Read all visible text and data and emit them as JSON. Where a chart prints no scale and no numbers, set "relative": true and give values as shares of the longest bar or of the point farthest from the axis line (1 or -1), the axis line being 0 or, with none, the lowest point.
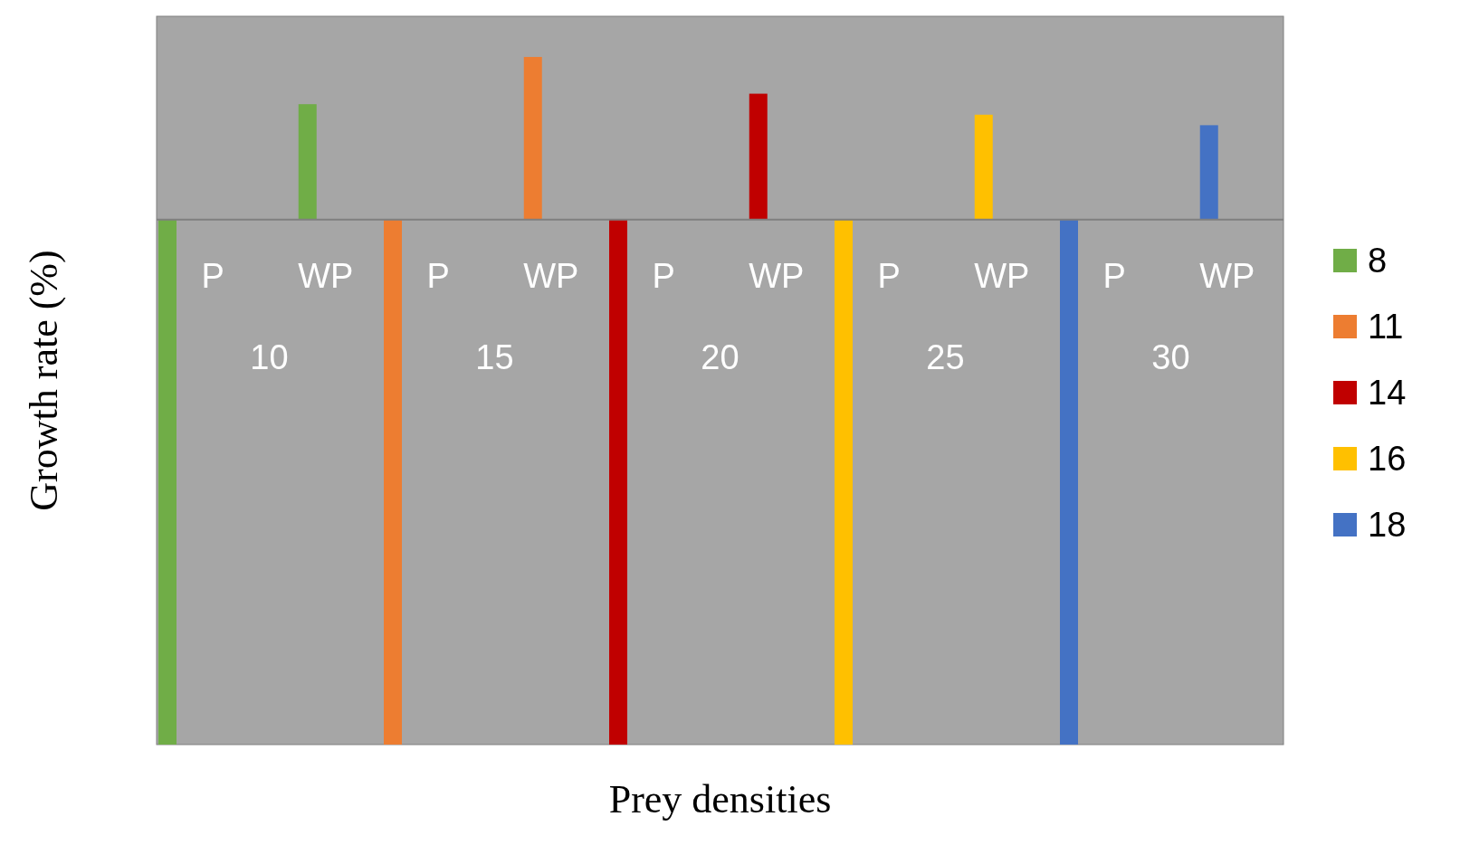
{
  "chart_data": {
    "type": "bar",
    "relative": true,
    "xlabel": "Prey densities",
    "ylabel": "Growth rate (%)",
    "categories": [
      "P",
      "WP",
      "P",
      "WP",
      "P",
      "WP",
      "P",
      "WP",
      "P",
      "WP"
    ],
    "annotations": [
      "10",
      "15",
      "20",
      "25",
      "30"
    ],
    "series": [
      {
        "name": "8",
        "color": "#70ad47",
        "values": [
          -1,
          0.22,
          null,
          null,
          null,
          null,
          null,
          null,
          null,
          null
        ]
      },
      {
        "name": "11",
        "color": "#ed7d31",
        "values": [
          null,
          null,
          -1,
          0.31,
          null,
          null,
          null,
          null,
          null,
          null
        ]
      },
      {
        "name": "14",
        "color": "#c00000",
        "values": [
          null,
          null,
          null,
          null,
          -1,
          0.24,
          null,
          null,
          null,
          null
        ]
      },
      {
        "name": "16",
        "color": "#ffc000",
        "values": [
          null,
          null,
          null,
          null,
          null,
          null,
          -1,
          0.2,
          null,
          null
        ]
      },
      {
        "name": "18",
        "color": "#4472c4",
        "values": [
          null,
          null,
          null,
          null,
          null,
          null,
          null,
          null,
          -1,
          0.18
        ]
      }
    ],
    "legend": "right"
  }
}
